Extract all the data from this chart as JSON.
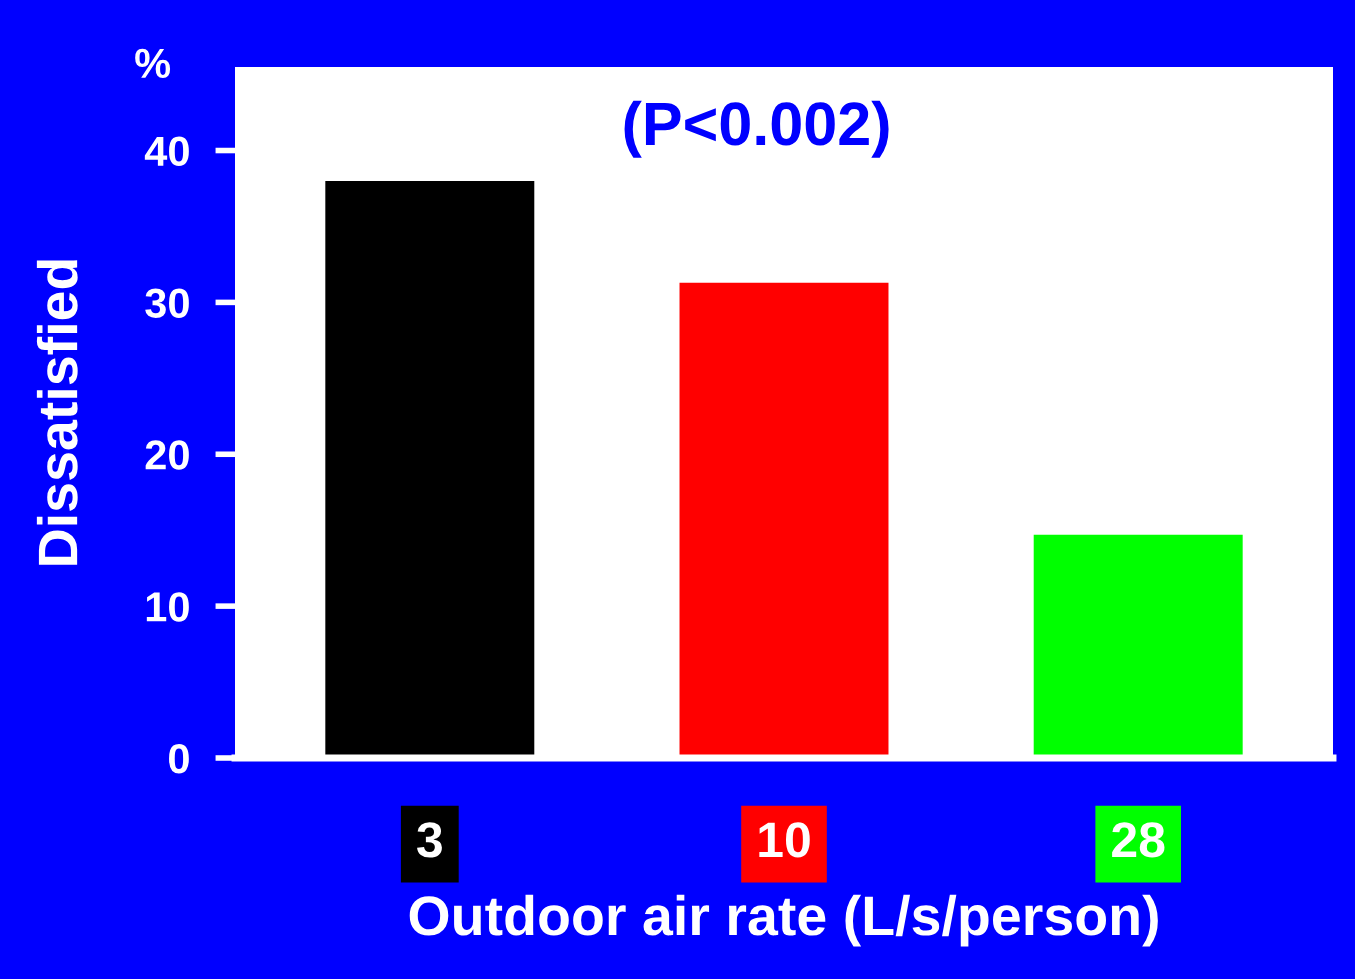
{
  "chart_data": {
    "type": "bar",
    "xlabel": "Outdoor air rate (L/s/person)",
    "ylabel": "Dissatisfied",
    "annotations": [
      "(P<0.002)",
      "%"
    ],
    "categories": [
      "3",
      "10",
      "28"
    ],
    "values": [
      38.0,
      31.3,
      14.7
    ],
    "colors": [
      "#000000",
      "#ff0000",
      "#00ff00"
    ],
    "ylim": [
      0,
      45.5
    ],
    "yticks": [
      0,
      10,
      20,
      30,
      40
    ],
    "grid": false
  }
}
